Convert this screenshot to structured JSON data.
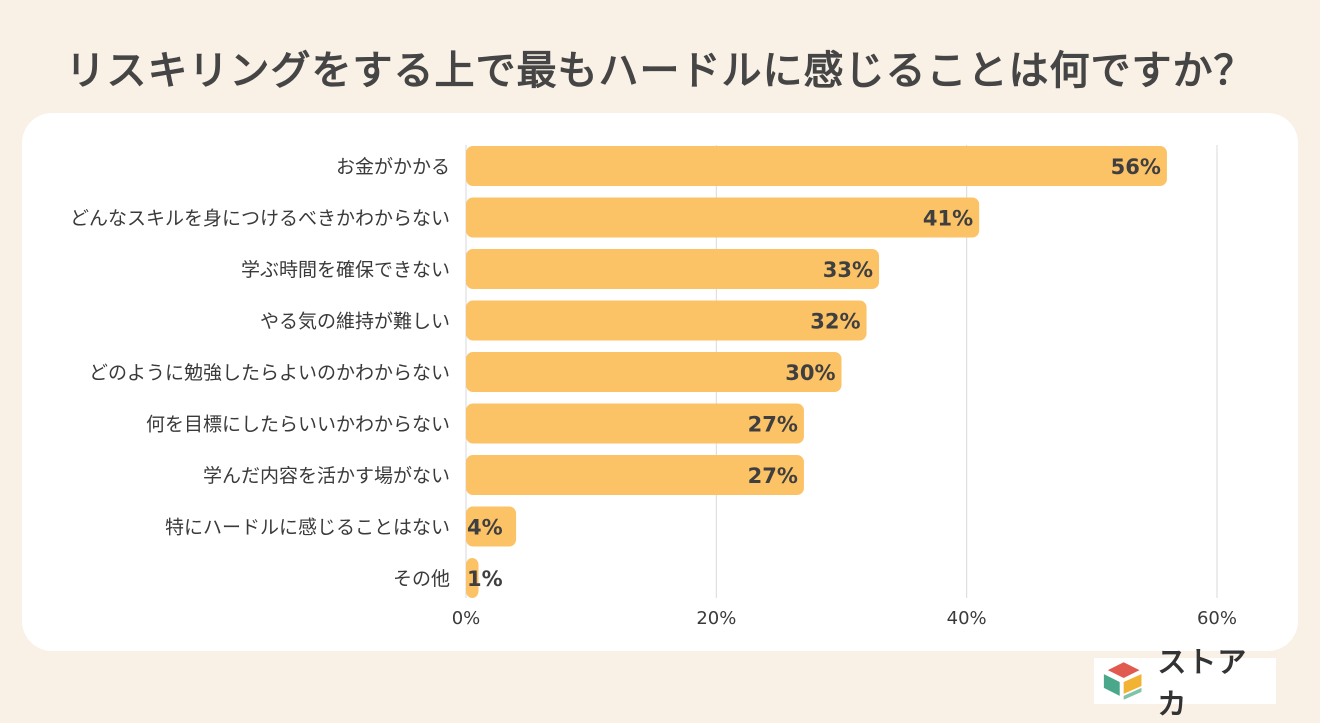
{
  "chart_data": {
    "type": "bar",
    "orientation": "horizontal",
    "title": "リスキリングをする上で最もハードルに感じることは何ですか？",
    "categories": [
      "お金がかかる",
      "どんなスキルを身につけるべきかわからない",
      "学ぶ時間を確保できない",
      "やる気の維持が難しい",
      "どのように勉強したらよいのかわからない",
      "何を目標にしたらいいかわからない",
      "学んだ内容を活かす場がない",
      "特にハードルに感じることはない",
      "その他"
    ],
    "values": [
      56,
      41,
      33,
      32,
      30,
      27,
      27,
      4,
      1
    ],
    "value_labels": [
      "56%",
      "41%",
      "33%",
      "32%",
      "30%",
      "27%",
      "27%",
      "4%",
      "1%"
    ],
    "xlim": [
      0,
      60
    ],
    "xticks": [
      0,
      20,
      40,
      60
    ],
    "xtick_labels": [
      "0%",
      "20%",
      "40%",
      "60%"
    ],
    "xlabel": "",
    "ylabel": "",
    "grid": true,
    "colors": {
      "bar": "#fcc266",
      "grid": "#d9d9d9",
      "background": "#f9f0e6",
      "card": "#ffffff"
    }
  },
  "logo": {
    "text": "ストアカ",
    "colors": [
      "#e05a4f",
      "#f2b233",
      "#4aa88a",
      "#7fc3a8"
    ]
  }
}
